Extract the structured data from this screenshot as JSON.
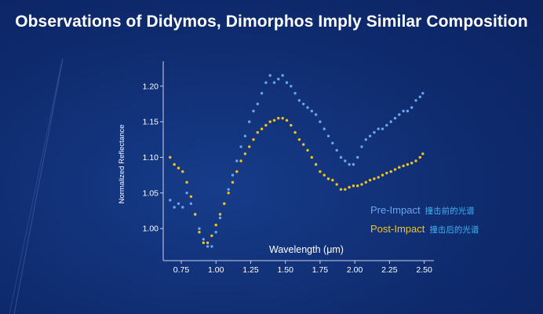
{
  "slide": {
    "title": "Observations of Didymos, Dimorphos Imply Similar Composition"
  },
  "legend": {
    "pre": {
      "label": "Pre-Impact",
      "cn": "撞击前的光谱"
    },
    "post": {
      "label": "Post-Impact",
      "cn": "撞击后的光谱"
    }
  },
  "chart_data": {
    "type": "scatter",
    "title": "",
    "xlabel": "Wavelength (μm)",
    "ylabel": "Normalized Reflectance",
    "xlim": [
      0.62,
      2.57
    ],
    "ylim": [
      0.955,
      1.235
    ],
    "xticks": [
      "0.75",
      "1.00",
      "1.25",
      "1.50",
      "1.75",
      "2.00",
      "2.25",
      "2.50"
    ],
    "yticks": [
      "1.00",
      "1.05",
      "1.10",
      "1.15",
      "1.20"
    ],
    "grid": false,
    "legend_position": "bottom-right",
    "series": [
      {
        "name": "Pre-Impact",
        "color": "#6aa6f0",
        "x": [
          0.67,
          0.7,
          0.73,
          0.76,
          0.79,
          0.82,
          0.85,
          0.88,
          0.91,
          0.94,
          0.97,
          1.0,
          1.03,
          1.06,
          1.09,
          1.12,
          1.15,
          1.18,
          1.21,
          1.24,
          1.27,
          1.3,
          1.33,
          1.36,
          1.39,
          1.42,
          1.45,
          1.48,
          1.51,
          1.54,
          1.57,
          1.6,
          1.63,
          1.66,
          1.69,
          1.72,
          1.75,
          1.78,
          1.81,
          1.84,
          1.87,
          1.9,
          1.93,
          1.96,
          1.99,
          2.02,
          2.05,
          2.08,
          2.11,
          2.14,
          2.17,
          2.2,
          2.23,
          2.26,
          2.29,
          2.32,
          2.35,
          2.38,
          2.41,
          2.44,
          2.47,
          2.49
        ],
        "y": [
          1.04,
          1.03,
          1.035,
          1.03,
          1.05,
          1.035,
          1.02,
          1.0,
          0.985,
          0.975,
          0.975,
          0.995,
          1.015,
          1.035,
          1.055,
          1.075,
          1.095,
          1.115,
          1.13,
          1.15,
          1.165,
          1.175,
          1.19,
          1.205,
          1.215,
          1.205,
          1.21,
          1.215,
          1.205,
          1.2,
          1.19,
          1.18,
          1.175,
          1.17,
          1.165,
          1.16,
          1.15,
          1.14,
          1.13,
          1.12,
          1.11,
          1.1,
          1.095,
          1.09,
          1.09,
          1.1,
          1.115,
          1.125,
          1.13,
          1.135,
          1.14,
          1.14,
          1.145,
          1.15,
          1.155,
          1.16,
          1.165,
          1.165,
          1.17,
          1.18,
          1.185,
          1.19
        ]
      },
      {
        "name": "Post-Impact",
        "color": "#f0c419",
        "x": [
          0.67,
          0.7,
          0.73,
          0.76,
          0.79,
          0.82,
          0.85,
          0.88,
          0.91,
          0.94,
          0.97,
          1.0,
          1.03,
          1.06,
          1.09,
          1.12,
          1.15,
          1.18,
          1.21,
          1.24,
          1.27,
          1.3,
          1.33,
          1.36,
          1.39,
          1.42,
          1.45,
          1.48,
          1.51,
          1.54,
          1.57,
          1.6,
          1.63,
          1.66,
          1.69,
          1.72,
          1.75,
          1.78,
          1.81,
          1.84,
          1.87,
          1.9,
          1.93,
          1.96,
          1.99,
          2.02,
          2.05,
          2.08,
          2.11,
          2.14,
          2.17,
          2.2,
          2.23,
          2.26,
          2.29,
          2.32,
          2.35,
          2.38,
          2.41,
          2.44,
          2.47,
          2.49
        ],
        "y": [
          1.1,
          1.09,
          1.085,
          1.08,
          1.065,
          1.045,
          1.02,
          0.995,
          0.98,
          0.98,
          0.99,
          1.005,
          1.02,
          1.035,
          1.05,
          1.065,
          1.08,
          1.095,
          1.105,
          1.115,
          1.125,
          1.135,
          1.14,
          1.145,
          1.15,
          1.152,
          1.155,
          1.155,
          1.152,
          1.145,
          1.135,
          1.125,
          1.118,
          1.11,
          1.1,
          1.09,
          1.08,
          1.075,
          1.07,
          1.068,
          1.062,
          1.055,
          1.055,
          1.058,
          1.06,
          1.06,
          1.062,
          1.065,
          1.068,
          1.07,
          1.072,
          1.075,
          1.078,
          1.08,
          1.083,
          1.086,
          1.088,
          1.09,
          1.092,
          1.095,
          1.1,
          1.105
        ]
      }
    ]
  }
}
